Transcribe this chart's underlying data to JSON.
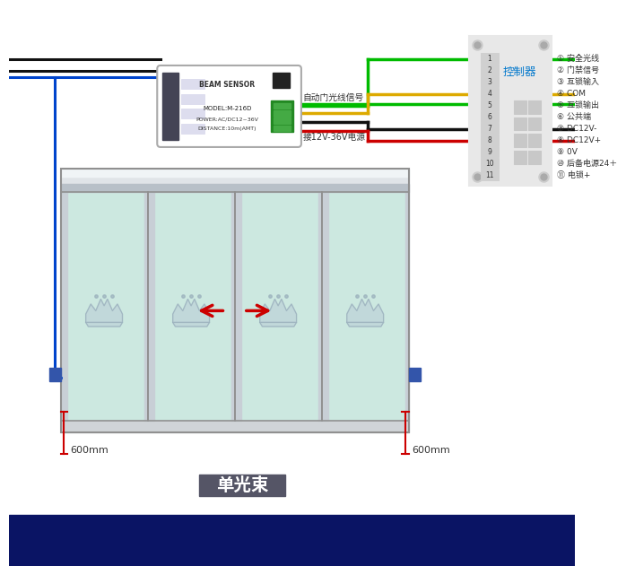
{
  "bg_color": "#ffffff",
  "bottom_bar_color": "#0a1464",
  "door_glass_color": "#cce8e0",
  "door_frame_color": "#c0c8d0",
  "door_header_color": "#d0d8e0",
  "label_text": "单光束",
  "controller_label": "控制器",
  "auto_door_signal": "自动门光线信号",
  "power_label": "接12V-36V电源",
  "controller_pins": [
    "① 安全光线",
    "② 门禁信号",
    "③ 互锁输入",
    "④ COM",
    "⑤ 互锁输出",
    "⑥ 公共端",
    "⑦ DC12V-",
    "⑧ DC12V+",
    "⑨ 0V",
    "⑩ 后备电源24＋",
    "⑪ 电锁+"
  ],
  "distance_label": "600mm",
  "wire_green": "#00bb00",
  "wire_yellow": "#ddaa00",
  "wire_black": "#111111",
  "wire_red": "#cc0000",
  "wire_blue": "#0044cc"
}
